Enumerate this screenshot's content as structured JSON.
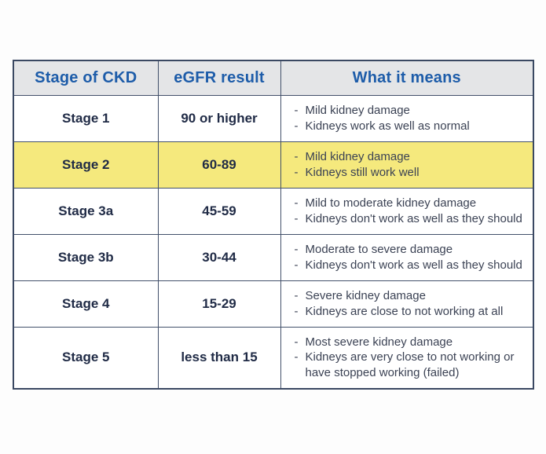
{
  "table": {
    "columns": [
      "Stage of CKD",
      "eGFR result",
      "What it means"
    ],
    "rows": [
      {
        "stage": "Stage 1",
        "egfr": "90 or higher",
        "meaning": [
          "Mild kidney damage",
          "Kidneys work as well as normal"
        ],
        "highlighted": false
      },
      {
        "stage": "Stage 2",
        "egfr": "60-89",
        "meaning": [
          "Mild kidney damage",
          "Kidneys still work well"
        ],
        "highlighted": true
      },
      {
        "stage": "Stage 3a",
        "egfr": "45-59",
        "meaning": [
          "Mild to moderate kidney damage",
          "Kidneys don't work as well as they should"
        ],
        "highlighted": false
      },
      {
        "stage": "Stage 3b",
        "egfr": "30-44",
        "meaning": [
          "Moderate to severe damage",
          "Kidneys don't work as well as they should"
        ],
        "highlighted": false
      },
      {
        "stage": "Stage 4",
        "egfr": "15-29",
        "meaning": [
          "Severe kidney damage",
          "Kidneys are close to not working at all"
        ],
        "highlighted": false
      },
      {
        "stage": "Stage 5",
        "egfr": "less than 15",
        "meaning": [
          "Most severe kidney damage",
          "Kidneys are very close to not working or have stopped working (failed)"
        ],
        "highlighted": false
      }
    ],
    "colors": {
      "header_text": "#1d5ca9",
      "header_bg": "#e4e5e7",
      "border": "#42506a",
      "stage_text": "#202b46",
      "body_text": "#3b4254",
      "highlight_bg": "#f5e97d",
      "page_bg": "#fdfdfd"
    }
  }
}
